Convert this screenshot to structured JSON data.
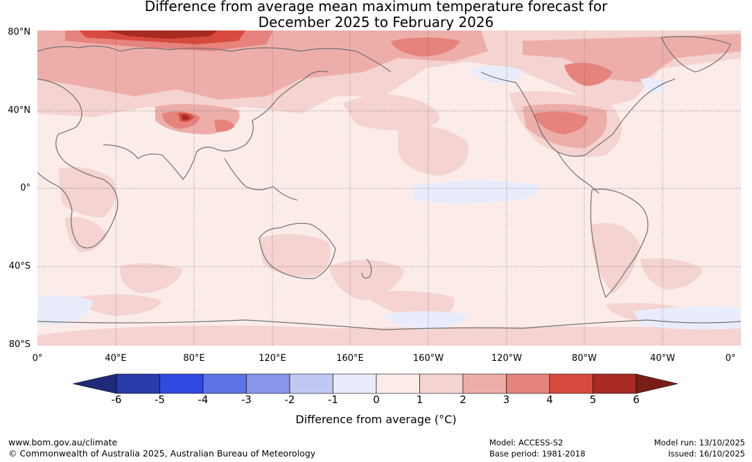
{
  "title": {
    "line1": "Difference from average mean maximum temperature forecast for",
    "line2": "December 2025 to February 2026"
  },
  "map": {
    "lat_labels": [
      "80°N",
      "40°N",
      "0°",
      "40°S",
      "80°S"
    ],
    "lon_labels": [
      "0°",
      "40°E",
      "80°E",
      "120°E",
      "160°E",
      "160°W",
      "120°W",
      "80°W",
      "40°W",
      "0°"
    ],
    "colors": {
      "ocean_neutral": "#fbecea",
      "warm_1": "#f4d3d0",
      "warm_2": "#edaeaa",
      "warm_3": "#e6837c",
      "warm_4": "#d84a3e",
      "warm_5": "#a82a22",
      "warm_6": "#7a1d18",
      "cool_1": "#e9ecfa",
      "coast": "#6f6f6f"
    }
  },
  "colorbar": {
    "ticks": [
      "-6",
      "-5",
      "-4",
      "-3",
      "-2",
      "-1",
      "0",
      "1",
      "2",
      "3",
      "4",
      "5",
      "6"
    ],
    "bins": [
      "#2a3aa8",
      "#3149e0",
      "#5c74e4",
      "#8895e8",
      "#c0c8f2",
      "#e9ecfa",
      "#fbecea",
      "#f4d3d0",
      "#edaeaa",
      "#e6837c",
      "#d84a3e",
      "#a82a22"
    ],
    "under_color": "#1f2a78",
    "over_color": "#7a1d18",
    "label": "Difference from average (°C)"
  },
  "footer": {
    "url": "www.bom.gov.au/climate",
    "copyright": "© Commonwealth of Australia 2025, Australian Bureau of Meteorology",
    "model": "Model: ACCESS-S2",
    "base_period": "Base period: 1981-2018",
    "model_run": "Model run: 13/10/2025",
    "issued": "Issued: 16/10/2025"
  }
}
